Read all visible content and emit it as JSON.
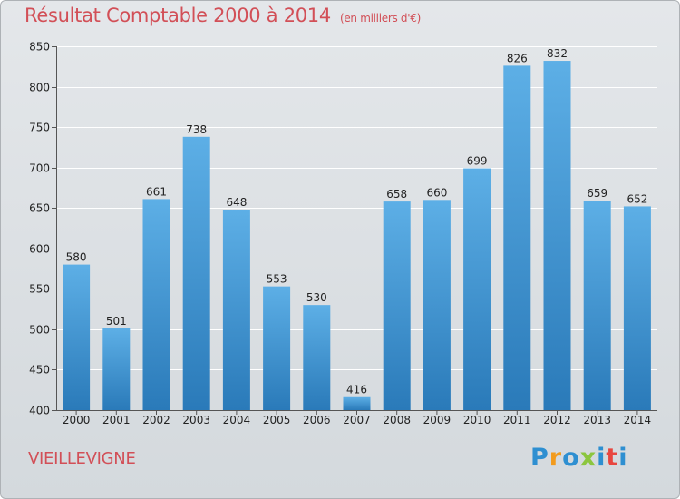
{
  "header": {
    "title": "Résultat Comptable 2000 à 2014",
    "subtitle": "(en milliers d'€)"
  },
  "footer": {
    "commune": "VIEILLEVIGNE",
    "logo_letters": [
      "P",
      "r",
      "o",
      "x",
      "i",
      "t",
      "i"
    ],
    "logo_colors": [
      "#2e8fd1",
      "#f29b1d",
      "#2e8fd1",
      "#8cc63f",
      "#2e8fd1",
      "#e8463f",
      "#2e8fd1"
    ]
  },
  "colors": {
    "bar_top": "#5dafe6",
    "bar_bottom": "#2a7ab9",
    "title": "#d24f57",
    "grid": "#ffffff"
  },
  "chart_data": {
    "type": "bar",
    "categories": [
      "2000",
      "2001",
      "2002",
      "2003",
      "2004",
      "2005",
      "2006",
      "2007",
      "2008",
      "2009",
      "2010",
      "2011",
      "2012",
      "2013",
      "2014"
    ],
    "values": [
      580,
      501,
      661,
      738,
      648,
      553,
      530,
      416,
      658,
      660,
      699,
      826,
      832,
      659,
      652
    ],
    "ylim": [
      400,
      850
    ],
    "yticks": [
      400,
      450,
      500,
      550,
      600,
      650,
      700,
      750,
      800,
      850
    ],
    "grid": true
  }
}
